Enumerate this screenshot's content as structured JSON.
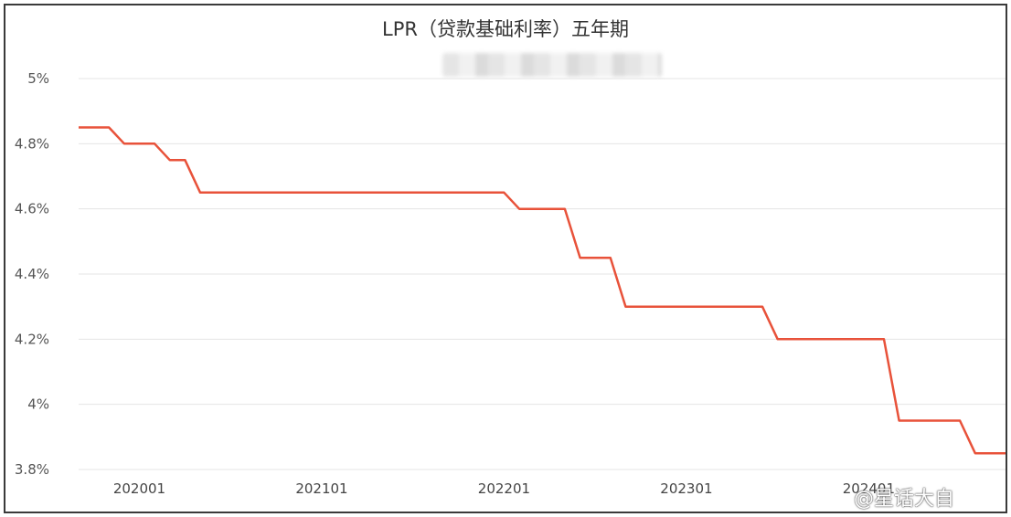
{
  "chart_data": {
    "type": "line",
    "title": "LPR（贷款基础利率）五年期",
    "xlabel": "",
    "ylabel": "",
    "ylim": [
      3.8,
      5.0
    ],
    "yticks": [
      "3.8%",
      "4%",
      "4.2%",
      "4.4%",
      "4.6%",
      "4.8%",
      "5%"
    ],
    "ytick_values": [
      3.8,
      4.0,
      4.2,
      4.4,
      4.6,
      4.8,
      5.0
    ],
    "xticks": [
      "202001",
      "202101",
      "202201",
      "202301",
      "202401"
    ],
    "xtick_index": [
      4,
      16,
      28,
      40,
      52
    ],
    "grid": true,
    "line_color": "#e8523a",
    "x_count": 61,
    "series": [
      {
        "name": "",
        "points": [
          [
            0,
            4.85
          ],
          [
            2,
            4.85
          ],
          [
            3,
            4.8
          ],
          [
            5,
            4.8
          ],
          [
            6,
            4.75
          ],
          [
            7,
            4.75
          ],
          [
            8,
            4.65
          ],
          [
            28,
            4.65
          ],
          [
            29,
            4.6
          ],
          [
            32,
            4.6
          ],
          [
            33,
            4.45
          ],
          [
            35,
            4.45
          ],
          [
            36,
            4.3
          ],
          [
            45,
            4.3
          ],
          [
            46,
            4.2
          ],
          [
            53,
            4.2
          ],
          [
            54,
            3.95
          ],
          [
            58,
            3.95
          ],
          [
            59,
            3.85
          ],
          [
            61,
            3.85
          ]
        ]
      }
    ]
  },
  "watermark": "@星话大自"
}
